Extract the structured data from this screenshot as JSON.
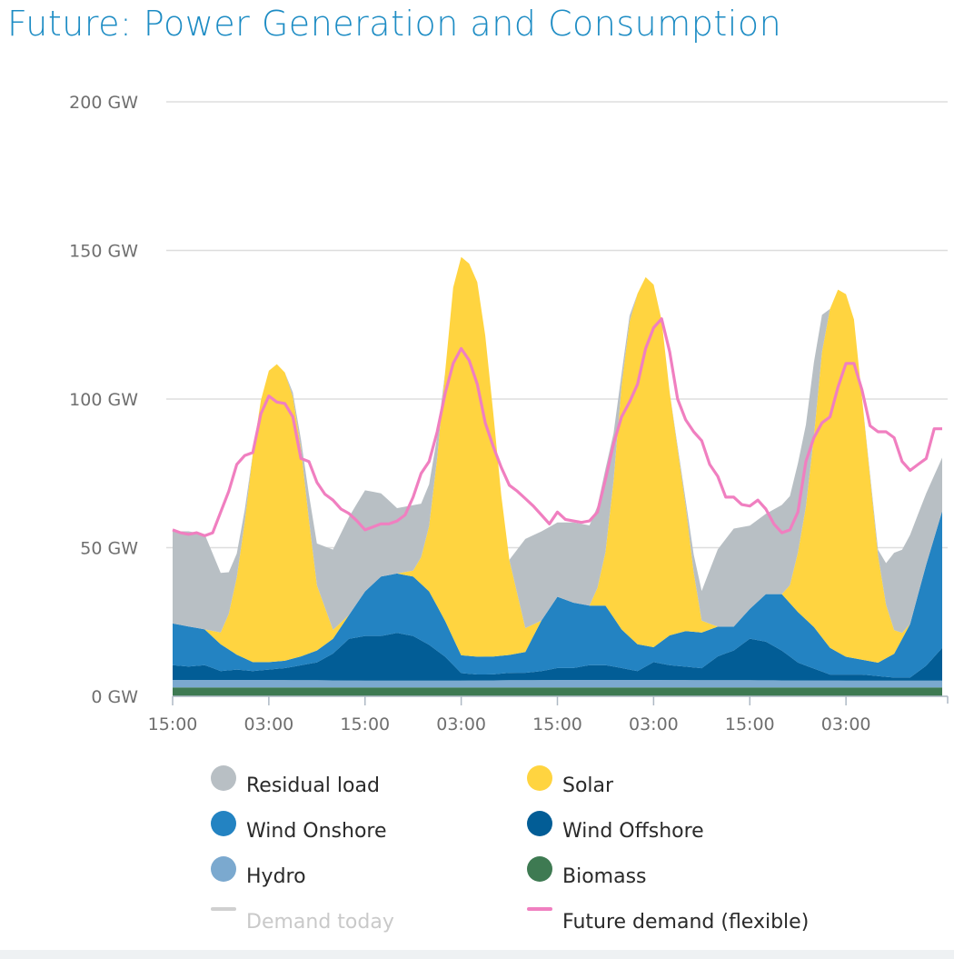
{
  "title": "Future: Power Generation and Consumption",
  "colors": {
    "title": "#1d8cc4",
    "residual": "#b8bfc4",
    "solar": "#ffd440",
    "wind_onshore": "#2383c2",
    "wind_offshore": "#025d96",
    "hydro": "#7ba9cf",
    "biomass": "#3e7a52",
    "demand_today": "#d0d0d0",
    "future_demand": "#f07fc0",
    "grid": "#dddddd",
    "axis": "#aeb9c4"
  },
  "legend": [
    {
      "key": "residual",
      "label": "Residual load",
      "marker": "dot",
      "color": "#b8bfc4"
    },
    {
      "key": "solar",
      "label": "Solar",
      "marker": "dot",
      "color": "#ffd440"
    },
    {
      "key": "wind_onshore",
      "label": "Wind Onshore",
      "marker": "dot",
      "color": "#2383c2"
    },
    {
      "key": "wind_offshore",
      "label": "Wind Offshore",
      "marker": "dot",
      "color": "#025d96"
    },
    {
      "key": "hydro",
      "label": "Hydro",
      "marker": "dot",
      "color": "#7ba9cf"
    },
    {
      "key": "biomass",
      "label": "Biomass",
      "marker": "dot",
      "color": "#3e7a52"
    },
    {
      "key": "demand_today",
      "label": "Demand today",
      "marker": "line",
      "color": "#d0d0d0",
      "disabled": true
    },
    {
      "key": "future_demand",
      "label": "Future demand (flexible)",
      "marker": "line",
      "color": "#f07fc0"
    }
  ],
  "chart_data": {
    "type": "area",
    "stacked": true,
    "ylim": [
      0,
      200
    ],
    "yticks": [
      0,
      50,
      100,
      150,
      200
    ],
    "ytick_labels": [
      "0 GW",
      "50 GW",
      "100 GW",
      "150 GW",
      "200 GW"
    ],
    "xlim": [
      0,
      96
    ],
    "x_unit": "hours",
    "xticks": [
      0,
      12,
      24,
      36,
      48,
      60,
      72,
      84
    ],
    "xtick_labels": [
      "15:00",
      "03:00",
      "15:00",
      "03:00",
      "15:00",
      "03:00",
      "15:00",
      "03:00"
    ],
    "grid": true,
    "legend_position": "bottom",
    "series": [
      {
        "key": "biomass",
        "name": "Biomass",
        "x": [
          0,
          96
        ],
        "values": [
          3,
          3
        ]
      },
      {
        "key": "hydro",
        "name": "Hydro",
        "x": [
          0,
          12,
          24,
          36,
          48,
          60,
          72,
          84,
          96
        ],
        "values": [
          2.5,
          2.5,
          2.3,
          2.3,
          2.5,
          2.5,
          2.4,
          2.3,
          2.3
        ]
      },
      {
        "key": "wind_offshore",
        "name": "Wind Offshore",
        "x": [
          0,
          2,
          4,
          6,
          8,
          10,
          12,
          14,
          16,
          18,
          20,
          22,
          24,
          26,
          28,
          30,
          32,
          34,
          36,
          38,
          40,
          42,
          44,
          46,
          48,
          50,
          52,
          54,
          56,
          58,
          60,
          62,
          64,
          66,
          68,
          70,
          72,
          74,
          76,
          78,
          80,
          82,
          84,
          86,
          88,
          90,
          92,
          94,
          96
        ],
        "values": [
          5,
          4.5,
          5,
          3,
          3.5,
          3,
          3.5,
          4,
          5,
          6,
          9,
          14,
          15,
          15,
          16,
          15,
          12,
          8,
          2.5,
          2,
          2,
          2.5,
          2.5,
          3,
          4,
          4,
          5,
          5,
          4,
          3,
          6,
          5,
          4.5,
          4,
          8,
          10,
          14,
          13,
          10,
          6,
          4,
          2,
          2,
          2,
          1.5,
          1,
          1,
          5,
          11
        ]
      },
      {
        "key": "wind_onshore",
        "name": "Wind Onshore",
        "x": [
          0,
          2,
          4,
          6,
          8,
          10,
          12,
          14,
          16,
          18,
          20,
          22,
          24,
          26,
          28,
          30,
          32,
          34,
          36,
          38,
          40,
          42,
          44,
          46,
          48,
          50,
          52,
          54,
          56,
          58,
          60,
          62,
          64,
          66,
          68,
          70,
          72,
          74,
          76,
          78,
          80,
          82,
          84,
          86,
          88,
          90,
          92,
          94,
          96
        ],
        "values": [
          14,
          13.5,
          12,
          9,
          5,
          3,
          2.5,
          2.5,
          3,
          4,
          5,
          8,
          15,
          20,
          20,
          20,
          18,
          12,
          6,
          6,
          6,
          6,
          7,
          17,
          24,
          22,
          20,
          20,
          13,
          9,
          5,
          10,
          12,
          12,
          10,
          8,
          10,
          16,
          19,
          17,
          14,
          9,
          6,
          5,
          4.5,
          8,
          18,
          34,
          46
        ]
      },
      {
        "key": "solar",
        "name": "Solar",
        "x": [
          0,
          4,
          6,
          7,
          8,
          9,
          10,
          11,
          12,
          13,
          14,
          15,
          16,
          17,
          18,
          20,
          22,
          24,
          26,
          28,
          30,
          31,
          32,
          33,
          34,
          35,
          36,
          37,
          38,
          39,
          40,
          41,
          42,
          44,
          46,
          48,
          52,
          53,
          54,
          55,
          56,
          57,
          58,
          59,
          60,
          61,
          62,
          63,
          64,
          65,
          66,
          68,
          70,
          72,
          74,
          76,
          77,
          78,
          79,
          80,
          81,
          82,
          83,
          84,
          85,
          86,
          87,
          88,
          89,
          90,
          91,
          92,
          94,
          96
        ],
        "values": [
          0,
          0,
          4,
          12,
          26,
          46,
          70,
          88,
          98,
          100,
          97,
          88,
          70,
          45,
          22,
          3,
          0,
          0,
          0,
          0,
          2,
          9,
          22,
          50,
          84,
          118,
          134,
          132,
          126,
          108,
          82,
          54,
          32,
          8,
          0,
          0,
          0,
          6,
          18,
          46,
          82,
          106,
          118,
          124,
          122,
          108,
          82,
          62,
          42,
          20,
          4,
          0,
          0,
          0,
          0,
          0,
          6,
          20,
          38,
          64,
          96,
          114,
          122,
          122,
          114,
          88,
          62,
          36,
          18,
          8,
          2,
          0,
          0,
          0
        ]
      },
      {
        "key": "residual",
        "name": "Residual load",
        "x": [
          0,
          2,
          4,
          6,
          8,
          10,
          12,
          14,
          16,
          18,
          20,
          22,
          24,
          26,
          28,
          30,
          32,
          34,
          36,
          38,
          40,
          42,
          44,
          46,
          48,
          50,
          52,
          54,
          56,
          58,
          60,
          62,
          64,
          66,
          68,
          70,
          72,
          74,
          76,
          78,
          80,
          82,
          84,
          86,
          88,
          90,
          92,
          94,
          96
        ],
        "values": [
          31,
          32,
          32,
          20,
          8,
          0,
          0,
          0,
          3,
          14,
          27,
          33,
          34,
          28,
          22,
          22,
          14,
          0,
          0,
          0,
          0,
          0,
          30,
          30,
          25,
          27,
          27,
          28,
          4,
          0,
          0,
          0,
          2,
          10,
          26,
          33,
          28,
          27,
          30,
          30,
          25,
          0,
          0,
          0,
          2,
          26,
          30,
          24,
          18
        ]
      }
    ],
    "lines": [
      {
        "key": "future_demand",
        "name": "Future demand (flexible)",
        "x": [
          0,
          1,
          2,
          3,
          4,
          5,
          6,
          7,
          8,
          9,
          10,
          11,
          12,
          13,
          14,
          15,
          16,
          17,
          18,
          19,
          20,
          21,
          22,
          23,
          24,
          25,
          26,
          27,
          28,
          29,
          30,
          31,
          32,
          33,
          34,
          35,
          36,
          37,
          38,
          39,
          40,
          41,
          42,
          43,
          44,
          45,
          46,
          47,
          48,
          49,
          50,
          51,
          52,
          53,
          54,
          55,
          56,
          57,
          58,
          59,
          60,
          61,
          62,
          63,
          64,
          65,
          66,
          67,
          68,
          69,
          70,
          71,
          72,
          73,
          74,
          75,
          76,
          77,
          78,
          79,
          80,
          81,
          82,
          83,
          84,
          85,
          86,
          87,
          88,
          89,
          90,
          91,
          92,
          93,
          94,
          95,
          96
        ],
        "values": [
          56,
          55,
          54.5,
          55,
          54,
          55,
          62,
          69,
          78,
          81,
          82,
          95,
          101,
          99,
          98.5,
          94,
          80,
          79,
          72,
          68,
          66,
          63,
          61.5,
          59,
          56,
          57,
          58,
          58,
          59,
          61,
          67,
          75,
          79,
          89,
          102,
          112,
          117,
          113,
          105,
          92,
          84,
          77,
          71,
          69,
          66.5,
          64,
          61,
          58,
          62,
          59.5,
          59,
          58.5,
          59,
          62,
          73,
          85,
          94,
          99,
          105,
          117,
          124,
          127,
          116,
          100,
          93,
          89,
          86,
          78,
          74,
          67,
          67,
          64.5,
          64,
          66,
          63,
          58,
          55,
          56,
          62,
          79,
          87,
          92,
          94,
          104,
          112,
          112,
          103,
          91,
          89,
          89,
          87,
          79,
          76,
          78,
          80,
          90,
          90
        ]
      }
    ]
  }
}
